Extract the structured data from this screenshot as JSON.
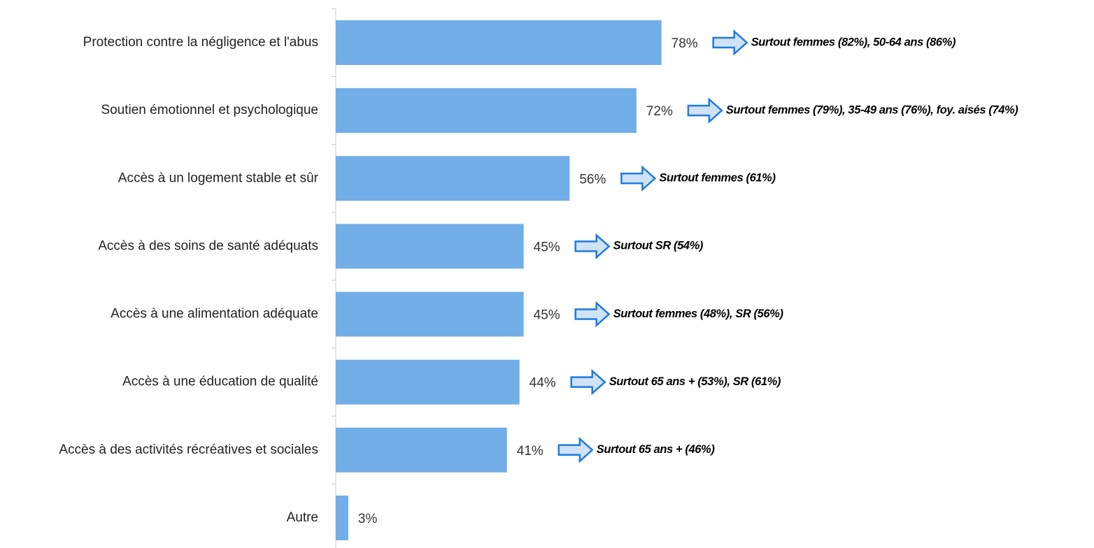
{
  "chart_data": {
    "type": "bar",
    "orientation": "horizontal",
    "color": "#72aee8",
    "categories": [
      "Protection contre la négligence et l'abus",
      "Soutien émotionnel et psychologique",
      "Accès à un logement stable et sûr",
      "Accès à des soins de santé adéquats",
      "Accès à une alimentation adéquate",
      "Accès à une éducation de qualité",
      "Accès à des activités récréatives et sociales",
      "Autre"
    ],
    "values": [
      78,
      72,
      56,
      45,
      45,
      44,
      41,
      3
    ],
    "value_labels": [
      "78%",
      "72%",
      "56%",
      "45%",
      "45%",
      "44%",
      "41%",
      "3%"
    ],
    "annotations": [
      "Surtout femmes (82%), 50-64 ans (86%)",
      "Surtout femmes (79%), 35-49 ans (76%), foy. aisés (74%)",
      "Surtout femmes (61%)",
      "Surtout SR (54%)",
      "Surtout femmes (48%), SR (56%)",
      "Surtout 65 ans + (53%), SR (61%)",
      "Surtout 65 ans + (46%)",
      null
    ]
  }
}
